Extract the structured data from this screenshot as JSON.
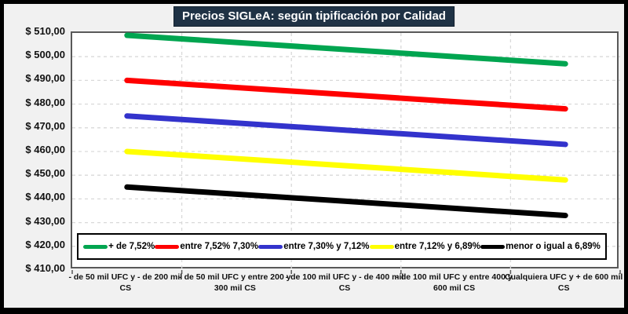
{
  "window": {
    "outer_border_color": "#000000",
    "background_color": "#F1F1F1",
    "plot_background_color": "#FFFFFF",
    "plot_border_color": "#595959",
    "gridline_color": "#D9D9D9",
    "title_background_color": "#1F3245",
    "title_text_color": "#FFFFFF"
  },
  "chart_data": {
    "type": "line",
    "title": "Precios SIGLeA: según tipificación por Calidad",
    "xlabel": "",
    "ylabel": "",
    "ylim": [
      410,
      510
    ],
    "ytick_step": 10,
    "ytick_labels_top_down": [
      "$ 510,00",
      "$ 500,00",
      "$ 490,00",
      "$ 480,00",
      "$ 470,00",
      "$ 460,00",
      "$ 450,00",
      "$ 440,00",
      "$ 430,00",
      "$ 420,00",
      "$ 410,00"
    ],
    "grid": "dashed horizontal gridlines every 10 units; dashed vertical gridlines at category boundaries",
    "legend_position": "bottom-inside",
    "categories": [
      "- de 50 mil UFC y - de 200 mil CS",
      "- de 50 mil UFC y entre  200 y 300 mil CS",
      "- de 100 mil UFC y - de 400 mil CS",
      "- de 100 mil UFC y entre  400 y 600 mil CS",
      "Cualquiera UFC y + de 600 mil CS"
    ],
    "series": [
      {
        "name": "+ de 7,52%",
        "color": "#00A550",
        "values": [
          509,
          506,
          503,
          500,
          497
        ]
      },
      {
        "name": "entre 7,52% 7,30%",
        "color": "#FF0000",
        "values": [
          490,
          487,
          484,
          481,
          478
        ]
      },
      {
        "name": "entre 7,30% y 7,12%",
        "color": "#3333CC",
        "values": [
          475,
          472,
          469,
          466,
          463
        ]
      },
      {
        "name": "entre 7,12% y 6,89%",
        "color": "#FFFF00",
        "values": [
          460,
          457,
          454,
          451,
          448
        ]
      },
      {
        "name": "menor o igual a 6,89%",
        "color": "#000000",
        "values": [
          445,
          442,
          439,
          436,
          433
        ]
      }
    ]
  }
}
